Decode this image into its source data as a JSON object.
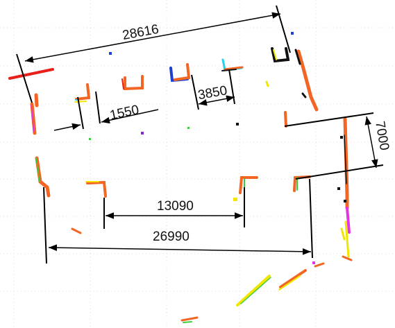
{
  "dimensions": {
    "overall_top": "28616",
    "gap_left": "1550",
    "gap_mid": "3850",
    "right_span": "7000",
    "inner_span": "13090",
    "bottom_span": "26990"
  },
  "colors": {
    "line": "#000000",
    "orange": "#f26522",
    "red": "#e8201c",
    "yellow": "#f2e600",
    "green": "#3ccd3c",
    "magenta": "#e234e2",
    "cyan": "#22d3ee",
    "blue": "#1d3fd6",
    "purple": "#7a2bd1"
  }
}
